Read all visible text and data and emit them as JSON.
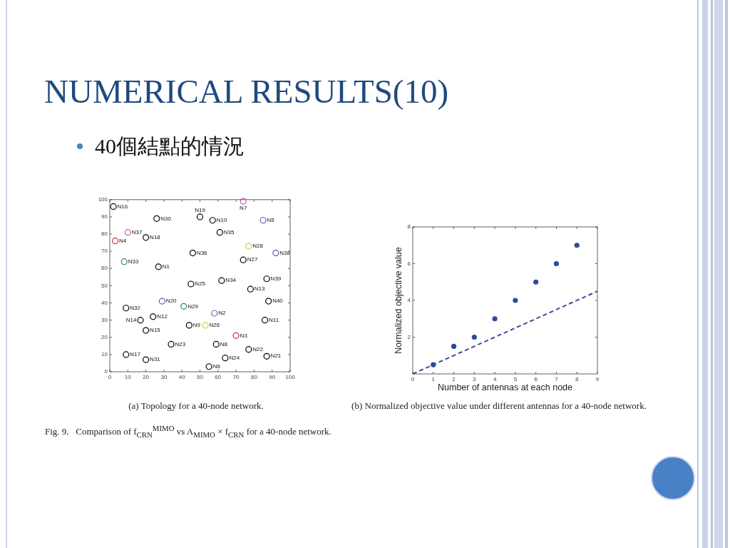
{
  "chart_data": [
    {
      "type": "scatter",
      "title": "NUMERICAL RESULTS(10)",
      "subtitle": "40個結點的情況",
      "marker": "circle",
      "xlim": [
        0,
        100
      ],
      "ylim": [
        0,
        100
      ],
      "xticks": [
        0,
        10,
        20,
        30,
        40,
        50,
        60,
        70,
        80,
        90,
        100
      ],
      "yticks": [
        0,
        10,
        20,
        30,
        40,
        50,
        60,
        70,
        80,
        90,
        100
      ],
      "series": [
        {
          "name": "N1",
          "color": "#000000",
          "x": [
            27
          ],
          "values": [
            61
          ]
        },
        {
          "name": "N2",
          "color": "#7a5cb8",
          "x": [
            58
          ],
          "values": [
            34
          ]
        },
        {
          "name": "N3",
          "color": "#e0262c",
          "x": [
            70
          ],
          "values": [
            21
          ]
        },
        {
          "name": "N4",
          "color": "#e0262c",
          "x": [
            3
          ],
          "values": [
            76
          ]
        },
        {
          "name": "N5",
          "color": "#5a5ab4",
          "x": [
            85
          ],
          "values": [
            88
          ]
        },
        {
          "name": "N6",
          "color": "#000000",
          "x": [
            55
          ],
          "values": [
            3
          ]
        },
        {
          "name": "N7",
          "color": "#c65aa8",
          "x": [
            74
          ],
          "values": [
            99
          ]
        },
        {
          "name": "N8",
          "color": "#000000",
          "x": [
            59
          ],
          "values": [
            16
          ]
        },
        {
          "name": "N9",
          "color": "#000000",
          "x": [
            44
          ],
          "values": [
            27
          ]
        },
        {
          "name": "N10",
          "color": "#000000",
          "x": [
            57
          ],
          "values": [
            88
          ]
        },
        {
          "name": "N11",
          "color": "#000000",
          "x": [
            86
          ],
          "values": [
            30
          ]
        },
        {
          "name": "N12",
          "color": "#000000",
          "x": [
            24
          ],
          "values": [
            32
          ]
        },
        {
          "name": "N13",
          "color": "#000000",
          "x": [
            78
          ],
          "values": [
            48
          ]
        },
        {
          "name": "N14",
          "color": "#000000",
          "x": [
            17
          ],
          "values": [
            30
          ]
        },
        {
          "name": "N15",
          "color": "#000000",
          "x": [
            20
          ],
          "values": [
            24
          ]
        },
        {
          "name": "N16",
          "color": "#000000",
          "x": [
            2
          ],
          "values": [
            96
          ]
        },
        {
          "name": "N17",
          "color": "#000000",
          "x": [
            9
          ],
          "values": [
            10
          ]
        },
        {
          "name": "N18",
          "color": "#000000",
          "x": [
            20
          ],
          "values": [
            78
          ]
        },
        {
          "name": "N19",
          "color": "#000000",
          "x": [
            50
          ],
          "values": [
            90
          ]
        },
        {
          "name": "N20",
          "color": "#5a5ab4",
          "x": [
            29
          ],
          "values": [
            41
          ]
        },
        {
          "name": "N21",
          "color": "#000000",
          "x": [
            87
          ],
          "values": [
            9
          ]
        },
        {
          "name": "N22",
          "color": "#000000",
          "x": [
            77
          ],
          "values": [
            13
          ]
        },
        {
          "name": "N23",
          "color": "#000000",
          "x": [
            34
          ],
          "values": [
            16
          ]
        },
        {
          "name": "N24",
          "color": "#000000",
          "x": [
            64
          ],
          "values": [
            8
          ]
        },
        {
          "name": "N25",
          "color": "#000000",
          "x": [
            45
          ],
          "values": [
            51
          ]
        },
        {
          "name": "N26",
          "color": "#d4cc3a",
          "x": [
            53
          ],
          "values": [
            27
          ]
        },
        {
          "name": "N27",
          "color": "#000000",
          "x": [
            74
          ],
          "values": [
            65
          ]
        },
        {
          "name": "N28",
          "color": "#d4cc3a",
          "x": [
            77
          ],
          "values": [
            73
          ]
        },
        {
          "name": "N29",
          "color": "#2e8b4a",
          "x": [
            41
          ],
          "values": [
            38
          ]
        },
        {
          "name": "N30",
          "color": "#000000",
          "x": [
            26
          ],
          "values": [
            89
          ]
        },
        {
          "name": "N31",
          "color": "#000000",
          "x": [
            20
          ],
          "values": [
            7
          ]
        },
        {
          "name": "N32",
          "color": "#000000",
          "x": [
            9
          ],
          "values": [
            37
          ]
        },
        {
          "name": "N33",
          "color": "#2e8b4a",
          "x": [
            8
          ],
          "values": [
            64
          ]
        },
        {
          "name": "N34",
          "color": "#000000",
          "x": [
            62
          ],
          "values": [
            53
          ]
        },
        {
          "name": "N35",
          "color": "#000000",
          "x": [
            61
          ],
          "values": [
            81
          ]
        },
        {
          "name": "N36",
          "color": "#000000",
          "x": [
            46
          ],
          "values": [
            69
          ]
        },
        {
          "name": "N37",
          "color": "#c65aa8",
          "x": [
            10
          ],
          "values": [
            81
          ]
        },
        {
          "name": "N38",
          "color": "#5a5ab4",
          "x": [
            92
          ],
          "values": [
            69
          ]
        },
        {
          "name": "N39",
          "color": "#000000",
          "x": [
            87
          ],
          "values": [
            54
          ]
        },
        {
          "name": "N40",
          "color": "#000000",
          "x": [
            88
          ],
          "values": [
            41
          ]
        }
      ],
      "annotations": [
        "(a) Topology for a 40-node network.",
        "Fig. 9.   Comparison of f$_{CRN}$$^{MIMO}$ vs A$_{MIMO}$ × f$_{CRN}$ for a 40-node network."
      ]
    },
    {
      "type": "scatter",
      "xlabel": "Number of antennas at each node",
      "ylabel": "Normalized objective value",
      "xlim": [
        0,
        9
      ],
      "ylim": [
        0,
        8
      ],
      "xticks": [
        0,
        1,
        2,
        3,
        4,
        5,
        6,
        7,
        8,
        9
      ],
      "yticks": [
        2,
        4,
        6,
        8
      ],
      "series": [
        {
          "type": "scatter",
          "marker": "circle",
          "color": "#2d4b9b",
          "x": [
            1,
            2,
            3,
            4,
            5,
            6,
            7,
            8
          ],
          "values": [
            0.5,
            1.5,
            2,
            3,
            4,
            5,
            6,
            7
          ]
        },
        {
          "type": "line",
          "marker": "none",
          "line_style": "dashed",
          "color": "#3c4c98",
          "x": [
            0,
            9
          ],
          "values": [
            0,
            4.5
          ]
        }
      ],
      "annotations": [
        "(b) Normalized objective value under different antennas for a 40-node network."
      ]
    }
  ]
}
